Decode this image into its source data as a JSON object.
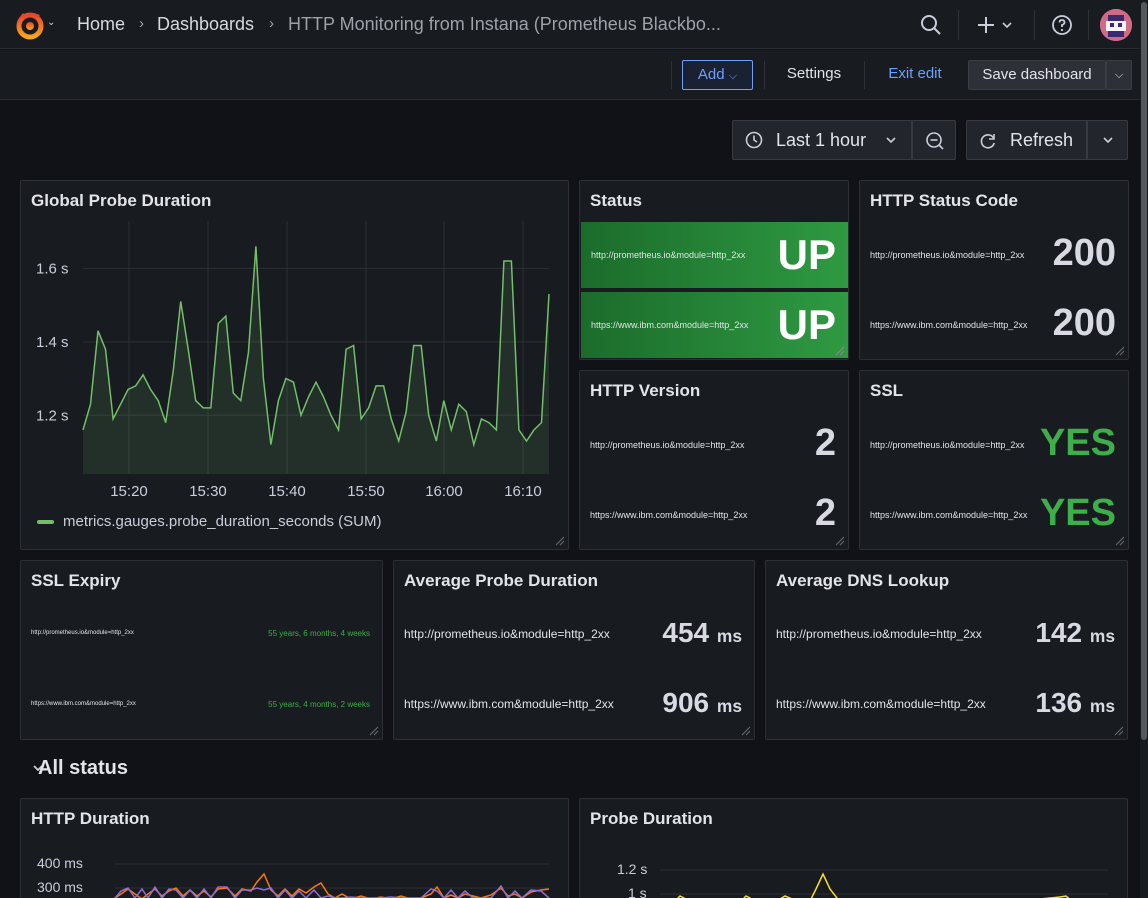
{
  "nav": {
    "breadcrumbs": [
      "Home",
      "Dashboards",
      "HTTP Monitoring from Instana (Prometheus Blackbo..."
    ]
  },
  "toolbar": {
    "add_label": "Add",
    "settings_label": "Settings",
    "exit_edit_label": "Exit edit",
    "save_label": "Save dashboard"
  },
  "time": {
    "range_label": "Last 1 hour",
    "refresh_label": "Refresh"
  },
  "colors": {
    "accent": "#6e9fff",
    "green": "#73bf69",
    "status_green": "#2f9a42",
    "text_green": "#3dae4a",
    "orange": "#ff780a",
    "purple": "#8f6dd4",
    "yellow": "#fade2a"
  },
  "panels": {
    "global_probe": {
      "title": "Global Probe Duration",
      "legend": "metrics.gauges.probe_duration_seconds (SUM)"
    },
    "status": {
      "title": "Status",
      "rows": [
        {
          "label": "http://prometheus.io&module=http_2xx",
          "value": "UP"
        },
        {
          "label": "https://www.ibm.com&module=http_2xx",
          "value": "UP"
        }
      ]
    },
    "http_status": {
      "title": "HTTP Status Code",
      "rows": [
        {
          "label": "http://prometheus.io&module=http_2xx",
          "value": "200"
        },
        {
          "label": "https://www.ibm.com&module=http_2xx",
          "value": "200"
        }
      ]
    },
    "http_version": {
      "title": "HTTP Version",
      "rows": [
        {
          "label": "http://prometheus.io&module=http_2xx",
          "value": "2"
        },
        {
          "label": "https://www.ibm.com&module=http_2xx",
          "value": "2"
        }
      ]
    },
    "ssl": {
      "title": "SSL",
      "rows": [
        {
          "label": "http://prometheus.io&module=http_2xx",
          "value": "YES"
        },
        {
          "label": "https://www.ibm.com&module=http_2xx",
          "value": "YES"
        }
      ]
    },
    "ssl_expiry": {
      "title": "SSL Expiry",
      "rows": [
        {
          "label": "http://prometheus.io&module=http_2xx",
          "value": "55 years, 6 months, 4 weeks"
        },
        {
          "label": "https://www.ibm.com&module=http_2xx",
          "value": "55 years, 4 months, 2 weeks"
        }
      ]
    },
    "avg_probe": {
      "title": "Average Probe Duration",
      "rows": [
        {
          "label": "http://prometheus.io&module=http_2xx",
          "value": "454",
          "unit": "ms"
        },
        {
          "label": "https://www.ibm.com&module=http_2xx",
          "value": "906",
          "unit": "ms"
        }
      ]
    },
    "avg_dns": {
      "title": "Average DNS Lookup",
      "rows": [
        {
          "label": "http://prometheus.io&module=http_2xx",
          "value": "142",
          "unit": "ms"
        },
        {
          "label": "https://www.ibm.com&module=http_2xx",
          "value": "136",
          "unit": "ms"
        }
      ]
    },
    "section": {
      "title": "All status"
    },
    "http_duration": {
      "title": "HTTP Duration",
      "y_ticks": [
        "400 ms",
        "300 ms"
      ]
    },
    "probe_duration": {
      "title": "Probe Duration",
      "y_ticks": [
        "1.2 s",
        "1 s"
      ]
    }
  },
  "chart_data": [
    {
      "type": "area",
      "title": "Global Probe Duration",
      "series": [
        {
          "name": "metrics.gauges.probe_duration_seconds (SUM)",
          "values": [
            1.16,
            1.23,
            1.43,
            1.38,
            1.19,
            1.23,
            1.27,
            1.28,
            1.31,
            1.27,
            1.24,
            1.18,
            1.32,
            1.51,
            1.38,
            1.24,
            1.22,
            1.22,
            1.45,
            1.47,
            1.26,
            1.24,
            1.37,
            1.66,
            1.3,
            1.12,
            1.24,
            1.3,
            1.29,
            1.2,
            1.25,
            1.29,
            1.25,
            1.2,
            1.16,
            1.38,
            1.39,
            1.19,
            1.22,
            1.28,
            1.28,
            1.19,
            1.13,
            1.21,
            1.39,
            1.39,
            1.2,
            1.13,
            1.24,
            1.16,
            1.23,
            1.21,
            1.12,
            1.19,
            1.18,
            1.16,
            1.62,
            1.62,
            1.16,
            1.13,
            1.16,
            1.18,
            1.53
          ]
        }
      ],
      "x_ticks": [
        "15:20",
        "15:30",
        "15:40",
        "15:50",
        "16:00",
        "16:10"
      ],
      "y_ticks": [
        "1.6 s",
        "1.4 s",
        "1.2 s"
      ],
      "ylim": [
        1.04,
        1.68
      ]
    }
  ]
}
